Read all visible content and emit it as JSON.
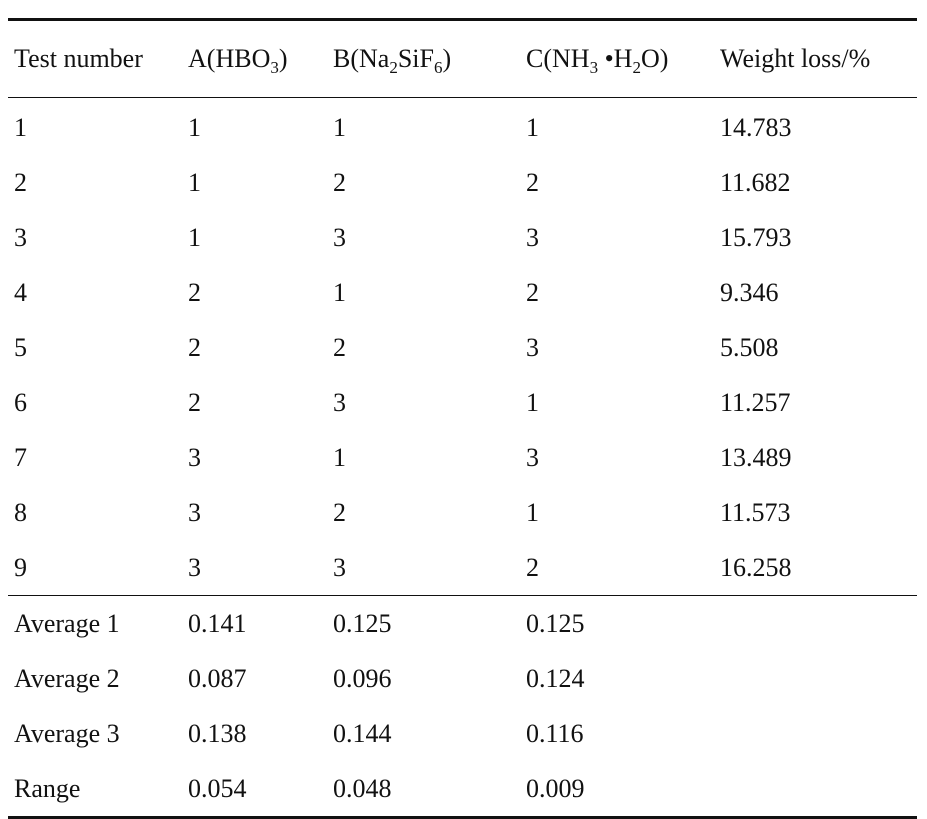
{
  "table": {
    "headers": {
      "test_number": "Test number",
      "a_label": "A",
      "a_chem": "HBO",
      "a_sub": "3",
      "b_label": "B",
      "b_chem_1": "Na",
      "b_sub_1": "2",
      "b_chem_2": "SiF",
      "b_sub_2": "6",
      "c_label": "C",
      "c_chem_1": "NH",
      "c_sub_1": "3",
      "c_chem_2": " •H",
      "c_sub_2": "2",
      "c_chem_3": "O",
      "weight_loss": "Weight loss/%"
    },
    "rows": [
      {
        "test": "1",
        "a": "1",
        "b": "1",
        "c": "1",
        "weight_loss": "14.783"
      },
      {
        "test": "2",
        "a": "1",
        "b": "2",
        "c": "2",
        "weight_loss": "11.682"
      },
      {
        "test": "3",
        "a": "1",
        "b": "3",
        "c": "3",
        "weight_loss": "15.793"
      },
      {
        "test": "4",
        "a": "2",
        "b": "1",
        "c": "2",
        "weight_loss": "9.346"
      },
      {
        "test": "5",
        "a": "2",
        "b": "2",
        "c": "3",
        "weight_loss": "5.508"
      },
      {
        "test": "6",
        "a": "2",
        "b": "3",
        "c": "1",
        "weight_loss": "11.257"
      },
      {
        "test": "7",
        "a": "3",
        "b": "1",
        "c": "3",
        "weight_loss": "13.489"
      },
      {
        "test": "8",
        "a": "3",
        "b": "2",
        "c": "1",
        "weight_loss": "11.573"
      },
      {
        "test": "9",
        "a": "3",
        "b": "3",
        "c": "2",
        "weight_loss": "16.258"
      }
    ],
    "summary": [
      {
        "label": "Average 1",
        "a": "0.141",
        "b": "0.125",
        "c": "0.125"
      },
      {
        "label": "Average 2",
        "a": "0.087",
        "b": "0.096",
        "c": "0.124"
      },
      {
        "label": "Average 3",
        "a": "0.138",
        "b": "0.144",
        "c": "0.116"
      },
      {
        "label": "Range",
        "a": "0.054",
        "b": "0.048",
        "c": "0.009"
      }
    ]
  }
}
